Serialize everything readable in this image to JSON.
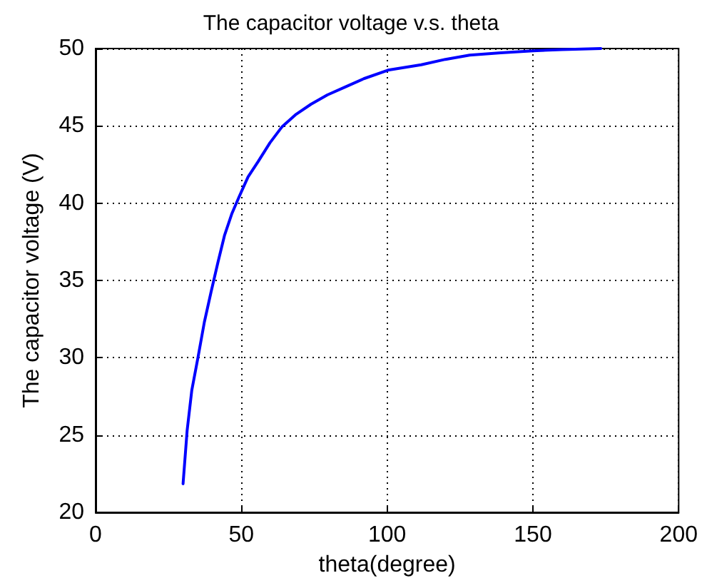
{
  "chart_data": {
    "type": "line",
    "title": "The capacitor voltage v.s. theta",
    "xlabel": "theta(degree)",
    "ylabel": "The capacitor voltage (V)",
    "series": [
      {
        "color": "#0000ff",
        "x": [
          30,
          31.4,
          33,
          35.1,
          37.3,
          39.6,
          42,
          44.2,
          46.7,
          49.2,
          52.3,
          55.8,
          59.8,
          64,
          68.8,
          73.9,
          79.5,
          85.5,
          92,
          100.3,
          111.7,
          120,
          128.3,
          139,
          150,
          160,
          173.3
        ],
        "values": [
          21.85,
          25.3,
          27.9,
          30,
          32.3,
          34.25,
          36.2,
          37.9,
          39.3,
          40.4,
          41.7,
          42.7,
          43.9,
          44.95,
          45.75,
          46.4,
          47,
          47.5,
          48.05,
          48.6,
          48.95,
          49.3,
          49.57,
          49.72,
          49.85,
          49.93,
          50
        ]
      }
    ],
    "xlim": [
      0,
      200
    ],
    "xticks": [
      0,
      50,
      100,
      150,
      200
    ],
    "ylim": [
      20,
      50
    ],
    "yticks": [
      20,
      25,
      30,
      35,
      40,
      45,
      50
    ],
    "grid": true,
    "line_style": "solid",
    "marker": "none"
  }
}
